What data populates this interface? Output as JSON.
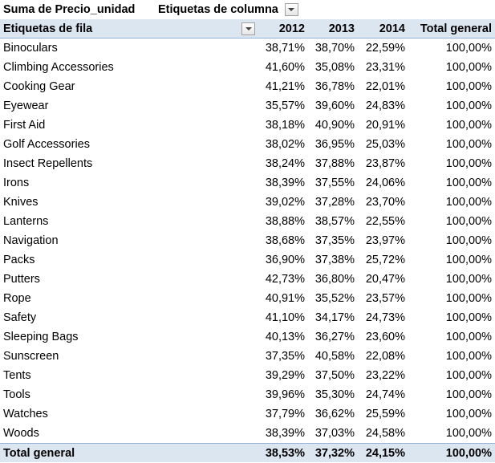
{
  "pivot": {
    "value_field_label": "Suma de Precio_unidad",
    "column_labels_header": "Etiquetas de columna",
    "row_labels_header": "Etiquetas de fila",
    "columns": [
      "2012",
      "2013",
      "2014",
      "Total general"
    ],
    "rows": [
      {
        "label": "Binoculars",
        "values": [
          "38,71%",
          "38,70%",
          "22,59%",
          "100,00%"
        ]
      },
      {
        "label": "Climbing Accessories",
        "values": [
          "41,60%",
          "35,08%",
          "23,31%",
          "100,00%"
        ]
      },
      {
        "label": "Cooking Gear",
        "values": [
          "41,21%",
          "36,78%",
          "22,01%",
          "100,00%"
        ]
      },
      {
        "label": "Eyewear",
        "values": [
          "35,57%",
          "39,60%",
          "24,83%",
          "100,00%"
        ]
      },
      {
        "label": "First Aid",
        "values": [
          "38,18%",
          "40,90%",
          "20,91%",
          "100,00%"
        ]
      },
      {
        "label": "Golf Accessories",
        "values": [
          "38,02%",
          "36,95%",
          "25,03%",
          "100,00%"
        ]
      },
      {
        "label": "Insect Repellents",
        "values": [
          "38,24%",
          "37,88%",
          "23,87%",
          "100,00%"
        ]
      },
      {
        "label": "Irons",
        "values": [
          "38,39%",
          "37,55%",
          "24,06%",
          "100,00%"
        ]
      },
      {
        "label": "Knives",
        "values": [
          "39,02%",
          "37,28%",
          "23,70%",
          "100,00%"
        ]
      },
      {
        "label": "Lanterns",
        "values": [
          "38,88%",
          "38,57%",
          "22,55%",
          "100,00%"
        ]
      },
      {
        "label": "Navigation",
        "values": [
          "38,68%",
          "37,35%",
          "23,97%",
          "100,00%"
        ]
      },
      {
        "label": "Packs",
        "values": [
          "36,90%",
          "37,38%",
          "25,72%",
          "100,00%"
        ]
      },
      {
        "label": "Putters",
        "values": [
          "42,73%",
          "36,80%",
          "20,47%",
          "100,00%"
        ]
      },
      {
        "label": "Rope",
        "values": [
          "40,91%",
          "35,52%",
          "23,57%",
          "100,00%"
        ]
      },
      {
        "label": "Safety",
        "values": [
          "41,10%",
          "34,17%",
          "24,73%",
          "100,00%"
        ]
      },
      {
        "label": "Sleeping Bags",
        "values": [
          "40,13%",
          "36,27%",
          "23,60%",
          "100,00%"
        ]
      },
      {
        "label": "Sunscreen",
        "values": [
          "37,35%",
          "40,58%",
          "22,08%",
          "100,00%"
        ]
      },
      {
        "label": "Tents",
        "values": [
          "39,29%",
          "37,50%",
          "23,22%",
          "100,00%"
        ]
      },
      {
        "label": "Tools",
        "values": [
          "39,96%",
          "35,30%",
          "24,74%",
          "100,00%"
        ]
      },
      {
        "label": "Watches",
        "values": [
          "37,79%",
          "36,62%",
          "25,59%",
          "100,00%"
        ]
      },
      {
        "label": "Woods",
        "values": [
          "38,39%",
          "37,03%",
          "24,58%",
          "100,00%"
        ]
      }
    ],
    "total": {
      "label": "Total general",
      "values": [
        "38,53%",
        "37,32%",
        "24,15%",
        "100,00%"
      ]
    }
  },
  "icons": {
    "column_filter": "dropdown-arrow-icon",
    "row_filter": "dropdown-arrow-icon"
  },
  "colors": {
    "header_fill": "#dce6f1",
    "header_border": "#95b3d7"
  }
}
